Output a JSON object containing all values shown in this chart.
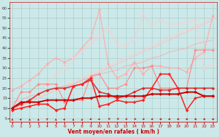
{
  "background_color": "#cce8e8",
  "grid_color": "#aacccc",
  "xlabel": "Vent moyen/en rafales ( km/h )",
  "xlabel_color": "#cc0000",
  "ylabel_yticks": [
    5,
    10,
    15,
    20,
    25,
    30,
    35,
    40,
    45,
    50,
    55,
    60
  ],
  "xticks": [
    0,
    1,
    2,
    3,
    4,
    5,
    6,
    7,
    8,
    9,
    10,
    11,
    12,
    13,
    14,
    15,
    16,
    17,
    18,
    19,
    20,
    21,
    22,
    23
  ],
  "xlim": [
    -0.3,
    23.5
  ],
  "ylim": [
    3,
    63
  ],
  "series": [
    {
      "x": [
        0,
        1,
        2,
        3,
        4,
        5,
        6,
        7,
        8,
        9,
        10,
        11,
        12,
        13,
        14,
        15,
        16,
        17,
        18,
        19,
        20,
        21,
        22,
        23
      ],
      "y": [
        10,
        11,
        13,
        15,
        17,
        19,
        21,
        23,
        25,
        27,
        29,
        31,
        33,
        35,
        37,
        39,
        41,
        43,
        45,
        47,
        49,
        51,
        53,
        55
      ],
      "color": "#ffcccc",
      "linewidth": 0.8,
      "marker": null,
      "markersize": 0,
      "alpha": 0.9
    },
    {
      "x": [
        0,
        1,
        2,
        3,
        4,
        5,
        6,
        7,
        8,
        9,
        10,
        11,
        12,
        13,
        14,
        15,
        16,
        17,
        18,
        19,
        20,
        21,
        22,
        23
      ],
      "y": [
        10,
        11,
        13,
        15,
        17,
        19,
        21,
        22,
        24,
        26,
        28,
        30,
        32,
        34,
        36,
        38,
        40,
        42,
        44,
        46,
        48,
        50,
        52,
        54
      ],
      "color": "#ffbbbb",
      "linewidth": 0.8,
      "marker": null,
      "markersize": 0,
      "alpha": 0.7
    },
    {
      "x": [
        0,
        1,
        2,
        3,
        4,
        5,
        6,
        7,
        8,
        9,
        10,
        11,
        12,
        13,
        14,
        15,
        16,
        17,
        18,
        19,
        20,
        21,
        22,
        23
      ],
      "y": [
        13,
        14,
        16,
        17,
        19,
        20,
        21,
        22,
        24,
        25,
        27,
        28,
        29,
        31,
        32,
        33,
        35,
        36,
        38,
        39,
        40,
        42,
        43,
        44
      ],
      "color": "#ffaaaa",
      "linewidth": 0.8,
      "marker": null,
      "markersize": 0,
      "alpha": 0.8
    },
    {
      "x": [
        0,
        1,
        2,
        3,
        4,
        5,
        6,
        7,
        8,
        9,
        10,
        11,
        12,
        13,
        14,
        15,
        16,
        17,
        18,
        19,
        20,
        21,
        22,
        23
      ],
      "y": [
        19,
        21,
        24,
        27,
        32,
        35,
        33,
        35,
        40,
        45,
        59,
        32,
        25,
        27,
        33,
        27,
        31,
        31,
        30,
        30,
        28,
        35,
        38,
        56
      ],
      "color": "#ffaaaa",
      "linewidth": 1.0,
      "marker": "D",
      "markersize": 2.5,
      "alpha": 0.85
    },
    {
      "x": [
        0,
        1,
        2,
        3,
        4,
        5,
        6,
        7,
        8,
        9,
        10,
        11,
        12,
        13,
        14,
        15,
        16,
        17,
        18,
        19,
        20,
        21,
        22,
        23
      ],
      "y": [
        9,
        11,
        14,
        17,
        23,
        27,
        30,
        35,
        39,
        42,
        46,
        50,
        42,
        41,
        44,
        57,
        51,
        54,
        52,
        52,
        53,
        54,
        30,
        32
      ],
      "color": "#ffcccc",
      "linewidth": 1.0,
      "marker": "D",
      "markersize": 2.5,
      "alpha": 0.65
    },
    {
      "x": [
        0,
        1,
        2,
        3,
        4,
        5,
        6,
        7,
        8,
        9,
        10,
        11,
        12,
        13,
        14,
        15,
        16,
        17,
        18,
        19,
        20,
        21,
        22,
        23
      ],
      "y": [
        10,
        18,
        18,
        22,
        22,
        22,
        13,
        14,
        14,
        26,
        27,
        20,
        20,
        22,
        30,
        30,
        31,
        20,
        20,
        20,
        20,
        39,
        39,
        39
      ],
      "color": "#ff8888",
      "linewidth": 1.0,
      "marker": "D",
      "markersize": 2.5,
      "alpha": 0.85
    },
    {
      "x": [
        0,
        1,
        2,
        3,
        4,
        5,
        6,
        7,
        8,
        9,
        10,
        11,
        12,
        13,
        14,
        15,
        16,
        17,
        18,
        19,
        20,
        21,
        22,
        23
      ],
      "y": [
        10,
        12,
        14,
        17,
        19,
        20,
        20,
        21,
        22,
        24,
        18,
        17,
        15,
        16,
        18,
        20,
        20,
        19,
        19,
        20,
        20,
        20,
        20,
        20
      ],
      "color": "#dd2222",
      "linewidth": 1.2,
      "marker": "D",
      "markersize": 2.5,
      "alpha": 0.9
    },
    {
      "x": [
        0,
        1,
        2,
        3,
        4,
        5,
        6,
        7,
        8,
        9,
        10,
        11,
        12,
        13,
        14,
        15,
        16,
        17,
        18,
        19,
        20,
        21,
        22,
        23
      ],
      "y": [
        9,
        10,
        11,
        12,
        12,
        9,
        10,
        21,
        22,
        25,
        11,
        12,
        14,
        13,
        13,
        14,
        20,
        27,
        27,
        20,
        9,
        15,
        16,
        16
      ],
      "color": "#ff2222",
      "linewidth": 1.2,
      "marker": "D",
      "markersize": 2.5,
      "alpha": 1.0
    },
    {
      "x": [
        0,
        1,
        2,
        3,
        4,
        5,
        6,
        7,
        8,
        9,
        10,
        11,
        12,
        13,
        14,
        15,
        16,
        17,
        18,
        19,
        20,
        21,
        22,
        23
      ],
      "y": [
        10,
        13,
        13,
        13,
        14,
        14,
        14,
        14,
        15,
        15,
        16,
        16,
        16,
        16,
        16,
        16,
        17,
        17,
        17,
        17,
        18,
        18,
        16,
        16
      ],
      "color": "#cc0000",
      "linewidth": 1.5,
      "marker": "D",
      "markersize": 2.5,
      "alpha": 1.0
    }
  ],
  "wind_symbols": {
    "x": [
      0,
      1,
      2,
      3,
      4,
      5,
      6,
      7,
      8,
      9,
      10,
      11,
      12,
      13,
      14,
      15,
      16,
      17,
      18,
      19,
      20,
      21,
      22,
      23
    ],
    "y_base": 4.5,
    "color": "#cc0000"
  }
}
